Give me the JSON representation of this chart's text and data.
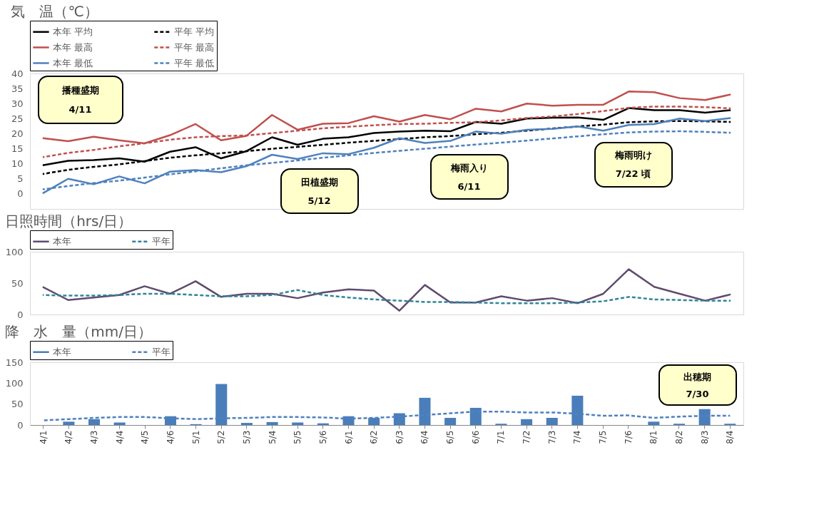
{
  "chart_data": [
    {
      "type": "line",
      "title": "気　温（℃）",
      "categories": [
        null,
        null,
        null,
        null,
        null,
        null,
        null,
        null,
        null,
        null,
        null,
        null,
        null,
        null,
        null,
        null,
        null,
        null,
        null,
        null,
        null,
        null,
        null,
        null,
        null,
        null,
        null,
        null
      ],
      "ylim": [
        -5,
        40
      ],
      "yticks": [
        0,
        5,
        10,
        15,
        20,
        25,
        30,
        35,
        40
      ],
      "grid": false,
      "legend": "top",
      "tick_labels": "y",
      "series": [
        {
          "name": "本年 平均",
          "color": "#000000",
          "line_style": "solid",
          "values": [
            9.5,
            11,
            11.2,
            11.8,
            10.7,
            14,
            15.5,
            11.8,
            14.2,
            18.8,
            16.3,
            18.3,
            18.8,
            20.2,
            20.7,
            21,
            20.8,
            23.9,
            23.3,
            25,
            25.3,
            25.4,
            24.6,
            28.5,
            27.8,
            27.8,
            27,
            27.8
          ]
        },
        {
          "name": "平年 平均",
          "color": "#000000",
          "line_style": "dashed",
          "values": [
            6.6,
            8,
            9,
            9.8,
            10.9,
            12,
            12.8,
            13.5,
            14.2,
            15,
            15.6,
            16.3,
            17,
            17.6,
            18.2,
            18.8,
            19.2,
            19.8,
            20.3,
            21,
            21.7,
            22.4,
            23,
            23.8,
            24.1,
            24.2,
            24.1,
            23.9
          ]
        },
        {
          "name": "本年 最高",
          "color": "#c0504d",
          "line_style": "solid",
          "values": [
            18.5,
            17.5,
            19,
            17.8,
            16.8,
            19.5,
            23.2,
            17.8,
            19.3,
            26.2,
            21.3,
            23.3,
            23.5,
            25.8,
            24,
            26.2,
            24.8,
            28.3,
            27.4,
            30,
            29.3,
            29.6,
            29.6,
            34,
            33.8,
            31.8,
            31.2,
            33
          ]
        },
        {
          "name": "平年 最高",
          "color": "#c0504d",
          "line_style": "dashed",
          "values": [
            12.2,
            13.6,
            14.6,
            15.8,
            16.8,
            18,
            18.8,
            19.2,
            19.4,
            20.2,
            21,
            21.8,
            22.3,
            22.8,
            23.2,
            23.3,
            23.6,
            23.8,
            24.4,
            25.2,
            25.7,
            26.5,
            27.5,
            28.6,
            29,
            29,
            28.8,
            28.4
          ]
        },
        {
          "name": "本年 最低",
          "color": "#4f81bd",
          "line_style": "solid",
          "values": [
            0.2,
            5,
            3.2,
            5.8,
            3.5,
            7.4,
            7.9,
            7.2,
            9.2,
            13,
            11.6,
            13.5,
            13.2,
            15.3,
            18.5,
            16.9,
            17.6,
            20.7,
            20,
            21.3,
            21.6,
            22.4,
            21,
            22.9,
            23.2,
            25,
            24.2,
            25.2
          ]
        },
        {
          "name": "平年 最低",
          "color": "#4f81bd",
          "line_style": "dashed",
          "values": [
            1.5,
            2.6,
            3.6,
            4.4,
            5.4,
            6.5,
            7.5,
            8.5,
            9.5,
            10.3,
            11.1,
            12,
            12.8,
            13.6,
            14.3,
            15,
            15.7,
            16.4,
            17,
            17.7,
            18.4,
            19.1,
            19.8,
            20.4,
            20.7,
            20.8,
            20.6,
            20.3
          ]
        }
      ],
      "annotations": [
        "播種盛期\n4/11",
        "田植盛期\n5/12",
        "梅雨入り\n6/11",
        "梅雨明け\n7/22 頃"
      ]
    },
    {
      "type": "line",
      "title": "日照時間（hrs/日）",
      "categories": [
        null,
        null,
        null,
        null,
        null,
        null,
        null,
        null,
        null,
        null,
        null,
        null,
        null,
        null,
        null,
        null,
        null,
        null,
        null,
        null,
        null,
        null,
        null,
        null,
        null,
        null,
        null,
        null
      ],
      "ylim": [
        0,
        100
      ],
      "yticks": [
        0,
        50,
        100
      ],
      "grid": false,
      "legend": "top",
      "tick_labels": "y",
      "series": [
        {
          "name": "本年",
          "color": "#5f4b6e",
          "line_style": "solid",
          "values": [
            44,
            23,
            27,
            31,
            45,
            33,
            53,
            28,
            33,
            33,
            26,
            35,
            40,
            38,
            6,
            47,
            19,
            19,
            29,
            22,
            26,
            18,
            33,
            72,
            44,
            33,
            22,
            32
          ]
        },
        {
          "name": "平年",
          "color": "#31849b",
          "line_style": "dashed",
          "values": [
            31,
            30,
            30,
            31,
            33,
            33,
            31,
            29,
            29,
            31,
            39,
            31,
            27,
            24,
            22,
            20,
            20,
            19,
            18,
            18,
            18,
            19,
            21,
            28,
            24,
            23,
            22,
            22
          ]
        }
      ]
    },
    {
      "type": "bar",
      "title": "降　水　量（mm/日）",
      "categories": [
        "4/1",
        "4/2",
        "4/3",
        "4/4",
        "4/5",
        "4/6",
        "5/1",
        "5/2",
        "5/3",
        "5/4",
        "5/5",
        "5/6",
        "6/1",
        "6/2",
        "6/3",
        "6/4",
        "6/5",
        "6/6",
        "7/1",
        "7/2",
        "7/3",
        "7/4",
        "7/5",
        "7/6",
        "8/1",
        "8/2",
        "8/3",
        "8/4"
      ],
      "ylim": [
        0,
        150
      ],
      "yticks": [
        0,
        50,
        100,
        150
      ],
      "grid": false,
      "legend": "top",
      "series": [
        {
          "name": "本年",
          "color": "#4a7ebb",
          "values": [
            0,
            8,
            14,
            6,
            0,
            21,
            2,
            98,
            5,
            7,
            6,
            4,
            21,
            17,
            28,
            65,
            17,
            41,
            3,
            14,
            17,
            70,
            0,
            0,
            8,
            3,
            38,
            3
          ]
        },
        {
          "name": "平年",
          "type": "line",
          "color": "#4f81bd",
          "line_style": "dashed",
          "values": [
            11,
            14,
            17,
            19,
            19,
            16,
            14,
            16,
            17,
            19,
            19,
            18,
            15,
            17,
            20,
            24,
            28,
            32,
            32,
            30,
            30,
            27,
            22,
            23,
            17,
            20,
            22,
            22
          ]
        }
      ],
      "annotations": [
        "出穂期\n7/30"
      ]
    }
  ]
}
